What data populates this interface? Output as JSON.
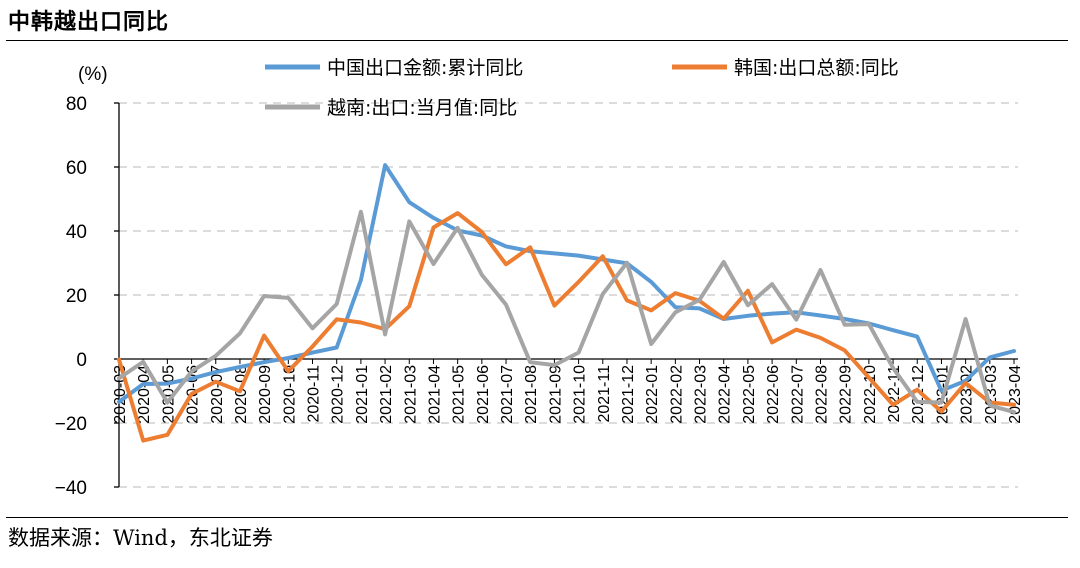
{
  "title": "中韩越出口同比",
  "source": "数据来源：Wind，东北证券",
  "chart_data": {
    "type": "line",
    "unit_label": "(%)",
    "ylim": [
      -40,
      80
    ],
    "yticks": [
      80,
      60,
      40,
      20,
      0,
      -20,
      -40
    ],
    "grid": "horizontal dashed",
    "legend_position": "top",
    "categories": [
      "2020-03",
      "2020-04",
      "2020-05",
      "2020-06",
      "2020-07",
      "2020-08",
      "2020-09",
      "2020-10",
      "2020-11",
      "2020-12",
      "2021-01",
      "2021-02",
      "2021-03",
      "2021-04",
      "2021-05",
      "2021-06",
      "2021-07",
      "2021-08",
      "2021-09",
      "2021-10",
      "2021-11",
      "2021-12",
      "2022-01",
      "2022-02",
      "2022-03",
      "2022-04",
      "2022-05",
      "2022-06",
      "2022-07",
      "2022-08",
      "2022-09",
      "2022-10",
      "2022-11",
      "2022-12",
      "2023-01",
      "2023-02",
      "2023-03",
      "2023-04"
    ],
    "series": [
      {
        "name": "中国出口金额:累计同比",
        "color": "#5B9BD5",
        "values": [
          -13.4,
          -7.8,
          -7.7,
          -6.1,
          -4.1,
          -2.5,
          -1.0,
          0.3,
          2.0,
          3.6,
          24.7,
          60.6,
          49.0,
          44.1,
          40.2,
          38.6,
          35.2,
          33.7,
          33.0,
          32.3,
          31.1,
          29.9,
          24.1,
          16.2,
          15.8,
          12.5,
          13.5,
          14.2,
          14.6,
          13.6,
          12.5,
          11.1,
          9.0,
          7.0,
          -9.9,
          -6.8,
          0.5,
          2.5
        ]
      },
      {
        "name": "韩国:出口总额:同比",
        "color": "#ED7D31",
        "values": [
          -0.2,
          -25.5,
          -23.7,
          -10.9,
          -7.1,
          -10.1,
          7.3,
          -3.8,
          3.9,
          12.4,
          11.4,
          9.3,
          16.5,
          41.1,
          45.6,
          39.7,
          29.6,
          34.9,
          16.7,
          24.1,
          32.1,
          18.3,
          15.2,
          20.6,
          18.2,
          12.6,
          21.3,
          5.2,
          9.2,
          6.6,
          2.7,
          -5.8,
          -14.3,
          -9.6,
          -16.4,
          -7.5,
          -13.6,
          -14.3
        ]
      },
      {
        "name": "越南:出口:当月值:同比",
        "color": "#A5A5A5",
        "values": [
          -6.0,
          -0.9,
          -13.6,
          -3.9,
          1.0,
          8.0,
          19.7,
          19.1,
          9.6,
          17.2,
          46.0,
          7.7,
          43.0,
          29.7,
          41.0,
          26.3,
          17.0,
          -1.0,
          -1.9,
          2.0,
          20.3,
          30.1,
          4.7,
          14.6,
          18.5,
          30.3,
          16.8,
          23.4,
          12.3,
          27.8,
          10.7,
          10.9,
          -2.8,
          -13.4,
          -13.6,
          12.5,
          -14.5,
          -16.6
        ]
      }
    ]
  }
}
